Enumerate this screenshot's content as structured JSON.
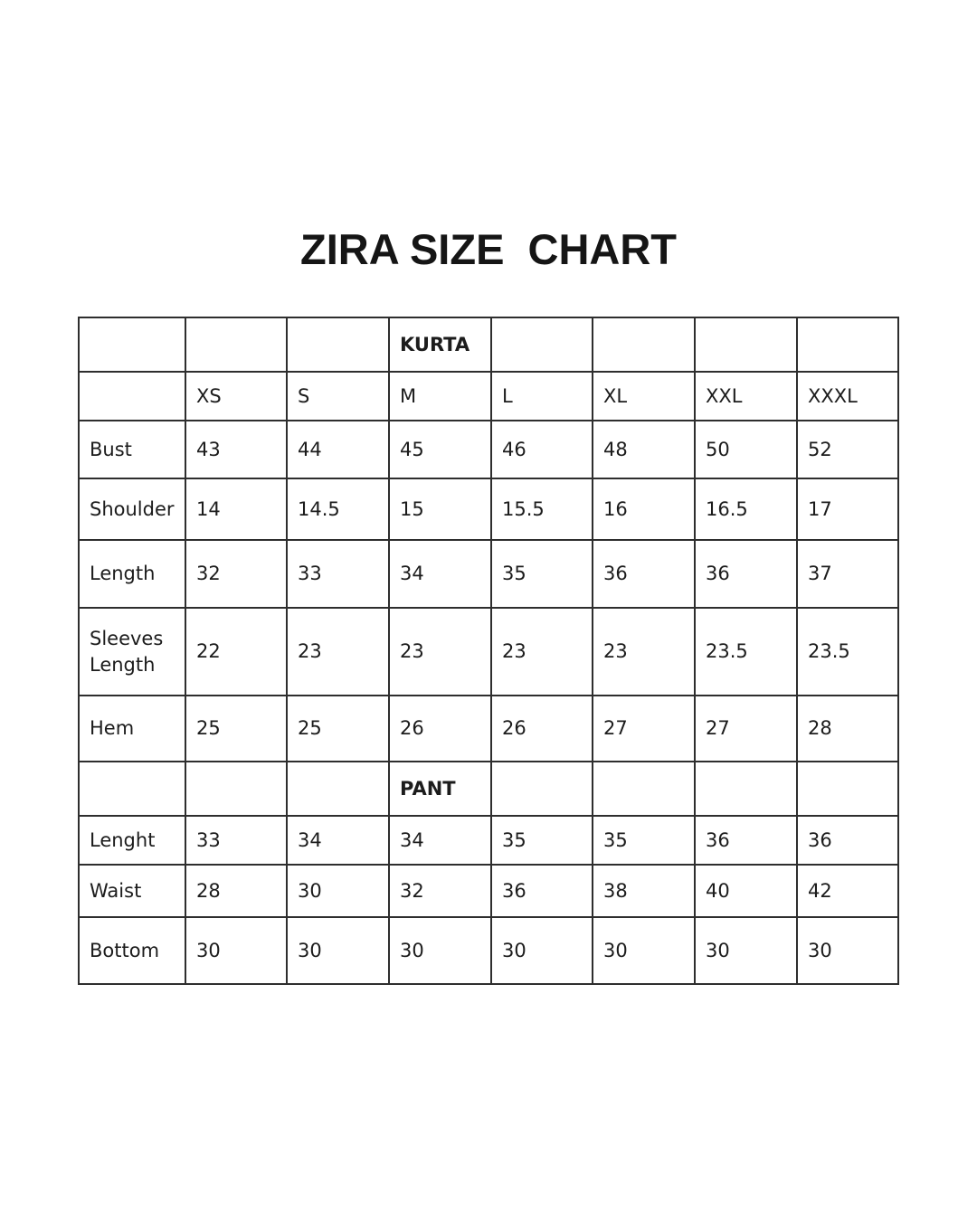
{
  "title": "ZIRA SIZE  CHART",
  "table": {
    "size_headers": [
      "",
      "XS",
      "S",
      "M",
      "L",
      "XL",
      "XXL",
      "XXXL"
    ],
    "sections": [
      {
        "label": "KURTA",
        "rows": [
          {
            "label": "Bust",
            "values": [
              "43",
              "44",
              "45",
              "46",
              "48",
              "50",
              "52"
            ]
          },
          {
            "label": "Shoulder",
            "values": [
              "14",
              "14.5",
              "15",
              "15.5",
              "16",
              "16.5",
              "17"
            ]
          },
          {
            "label": "Length",
            "values": [
              "32",
              "33",
              "34",
              "35",
              "36",
              "36",
              "37"
            ]
          },
          {
            "label": "Sleeves Length",
            "values": [
              "22",
              "23",
              "23",
              "23",
              "23",
              "23.5",
              "23.5"
            ]
          },
          {
            "label": "Hem",
            "values": [
              "25",
              "25",
              "26",
              "26",
              "27",
              "27",
              "28"
            ]
          }
        ]
      },
      {
        "label": "PANT",
        "rows": [
          {
            "label": "Lenght",
            "values": [
              "33",
              "34",
              "34",
              "35",
              "35",
              "36",
              "36"
            ]
          },
          {
            "label": "Waist",
            "values": [
              "28",
              "30",
              "32",
              "36",
              "38",
              "40",
              "42"
            ]
          },
          {
            "label": "Bottom",
            "values": [
              "30",
              "30",
              "30",
              "30",
              "30",
              "30",
              "30"
            ]
          }
        ]
      }
    ]
  }
}
